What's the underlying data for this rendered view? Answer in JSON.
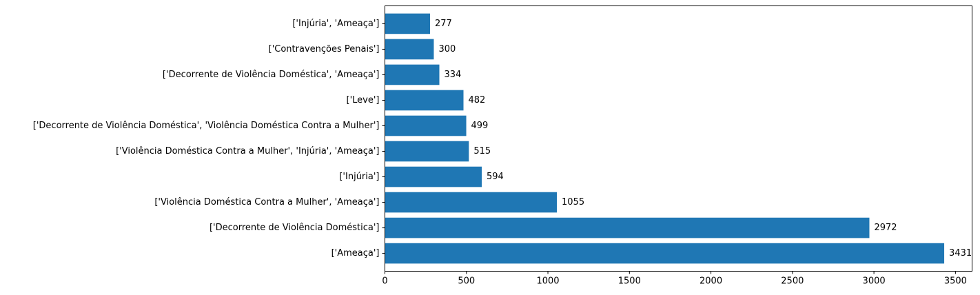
{
  "chart_data": {
    "type": "bar",
    "orientation": "horizontal",
    "categories": [
      "['Ameaça']",
      "['Decorrente de Violência Doméstica']",
      "['Violência Doméstica Contra a Mulher', 'Ameaça']",
      "['Injúria']",
      "['Violência Doméstica Contra a Mulher', 'Injúria', 'Ameaça']",
      "['Decorrente de Violência Doméstica', 'Violência Doméstica Contra a Mulher']",
      "['Leve']",
      "['Decorrente de Violência Doméstica', 'Ameaça']",
      "['Contravenções Penais']",
      "['Injúria', 'Ameaça']"
    ],
    "values": [
      3431,
      2972,
      1055,
      594,
      515,
      499,
      482,
      334,
      300,
      277
    ],
    "data_labels": [
      "3431",
      "2972",
      "1055",
      "594",
      "515",
      "499",
      "482",
      "334",
      "300",
      "277"
    ],
    "xticks": [
      0,
      500,
      1000,
      1500,
      2000,
      2500,
      3000,
      3500
    ],
    "xtick_labels": [
      "0",
      "500",
      "1000",
      "1500",
      "2000",
      "2500",
      "3000",
      "3500"
    ],
    "xlim": [
      0,
      3602
    ],
    "bar_color": "#1f77b4",
    "grid": false,
    "title": "",
    "xlabel": "",
    "ylabel": ""
  }
}
